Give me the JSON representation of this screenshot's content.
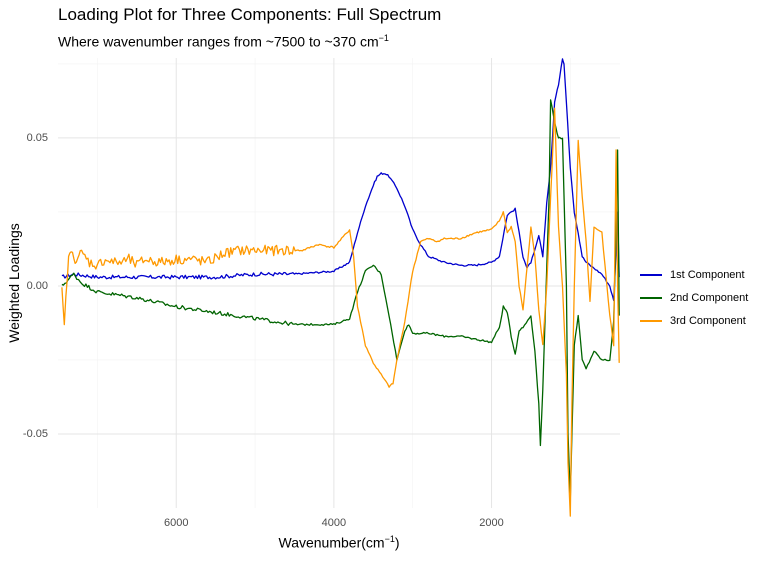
{
  "chart_data": {
    "type": "line",
    "title": "Loading Plot for Three Components: Full Spectrum",
    "subtitle": "Where wavenumber ranges from ~7500 to ~370 cm",
    "subtitle_sup": "−1",
    "xlabel": "Wavenumber(cm",
    "xlabel_sup": "−1",
    "xlabel_end": ")",
    "ylabel": "Weighted Loadings",
    "x_reversed": true,
    "xlim": [
      7500,
      370
    ],
    "ylim": [
      -0.075,
      0.077
    ],
    "x_ticks": [
      6000,
      4000,
      2000
    ],
    "x_tick_labels": [
      "6000",
      "4000",
      "2000"
    ],
    "y_ticks": [
      0.05,
      0.0,
      -0.05
    ],
    "y_tick_labels": [
      "0.05",
      "0.00",
      "-0.05"
    ],
    "grid": true,
    "legend_position": "right",
    "series": [
      {
        "name": "1st Component",
        "color": "#0000CD",
        "x": [
          7450,
          7300,
          7000,
          6500,
          6000,
          5500,
          5000,
          4500,
          4000,
          3800,
          3700,
          3600,
          3500,
          3450,
          3400,
          3350,
          3300,
          3200,
          3100,
          3000,
          2900,
          2800,
          2600,
          2400,
          2200,
          2000,
          1900,
          1800,
          1700,
          1650,
          1600,
          1550,
          1500,
          1450,
          1400,
          1350,
          1300,
          1250,
          1200,
          1150,
          1100,
          1080,
          1050,
          1000,
          950,
          900,
          850,
          800,
          700,
          600,
          500,
          450,
          420,
          400,
          380
        ],
        "y": [
          0.003,
          0.004,
          0.003,
          0.003,
          0.003,
          0.003,
          0.004,
          0.004,
          0.005,
          0.008,
          0.018,
          0.027,
          0.034,
          0.037,
          0.038,
          0.038,
          0.037,
          0.033,
          0.027,
          0.019,
          0.014,
          0.01,
          0.008,
          0.007,
          0.007,
          0.008,
          0.01,
          0.024,
          0.026,
          0.018,
          0.01,
          0.006,
          0.008,
          0.012,
          0.017,
          0.01,
          0.028,
          0.04,
          0.062,
          0.068,
          0.077,
          0.075,
          0.062,
          0.04,
          0.025,
          0.018,
          0.01,
          0.008,
          0.006,
          0.004,
          0.0,
          -0.005,
          0.012,
          0.025,
          0.003
        ]
      },
      {
        "name": "2nd Component",
        "color": "#006400",
        "x": [
          7450,
          7300,
          7200,
          7000,
          6500,
          6000,
          5500,
          5000,
          4500,
          4000,
          3800,
          3700,
          3600,
          3500,
          3400,
          3300,
          3200,
          3100,
          3050,
          3000,
          2900,
          2800,
          2600,
          2400,
          2200,
          2000,
          1900,
          1850,
          1800,
          1750,
          1700,
          1650,
          1600,
          1500,
          1450,
          1400,
          1380,
          1350,
          1300,
          1270,
          1250,
          1200,
          1150,
          1100,
          1050,
          1030,
          1000,
          980,
          950,
          900,
          850,
          800,
          700,
          600,
          500,
          450,
          420,
          400,
          380
        ],
        "y": [
          0.0,
          0.004,
          0.001,
          -0.002,
          -0.004,
          -0.007,
          -0.009,
          -0.011,
          -0.013,
          -0.013,
          -0.011,
          -0.002,
          0.005,
          0.007,
          0.004,
          -0.01,
          -0.025,
          -0.015,
          -0.013,
          -0.016,
          -0.016,
          -0.016,
          -0.017,
          -0.017,
          -0.018,
          -0.019,
          -0.014,
          -0.007,
          -0.009,
          -0.017,
          -0.023,
          -0.015,
          -0.014,
          -0.01,
          -0.022,
          -0.04,
          -0.054,
          -0.035,
          0.006,
          0.03,
          0.063,
          0.055,
          0.05,
          0.05,
          0.0,
          -0.05,
          -0.072,
          -0.05,
          -0.02,
          -0.01,
          -0.025,
          -0.028,
          -0.022,
          -0.025,
          -0.025,
          -0.012,
          0.02,
          0.046,
          -0.01
        ]
      },
      {
        "name": "3rd Component",
        "color": "#FF9900",
        "x": [
          7450,
          7420,
          7380,
          7350,
          7300,
          7250,
          7200,
          7100,
          7000,
          6900,
          6800,
          6700,
          6600,
          6500,
          6400,
          6200,
          6000,
          5800,
          5600,
          5400,
          5200,
          5000,
          4800,
          4600,
          4400,
          4200,
          4000,
          3900,
          3800,
          3750,
          3700,
          3600,
          3500,
          3400,
          3300,
          3250,
          3200,
          3100,
          3000,
          2900,
          2800,
          2700,
          2600,
          2400,
          2200,
          2000,
          1900,
          1850,
          1800,
          1750,
          1700,
          1650,
          1600,
          1500,
          1450,
          1400,
          1350,
          1300,
          1250,
          1200,
          1150,
          1100,
          1050,
          1030,
          1000,
          980,
          950,
          900,
          850,
          800,
          750,
          700,
          600,
          500,
          450,
          420,
          400,
          380
        ],
        "y": [
          -0.002,
          -0.014,
          0.005,
          0.012,
          0.009,
          0.01,
          0.011,
          0.008,
          0.007,
          0.009,
          0.008,
          0.008,
          0.009,
          0.007,
          0.009,
          0.008,
          0.009,
          0.009,
          0.008,
          0.011,
          0.012,
          0.012,
          0.012,
          0.012,
          0.012,
          0.014,
          0.013,
          0.016,
          0.019,
          0.01,
          -0.007,
          -0.02,
          -0.026,
          -0.03,
          -0.034,
          -0.033,
          -0.025,
          -0.012,
          0.005,
          0.015,
          0.016,
          0.015,
          0.016,
          0.016,
          0.018,
          0.019,
          0.022,
          0.025,
          0.018,
          0.02,
          0.015,
          0.0,
          -0.008,
          0.02,
          0.01,
          -0.008,
          -0.02,
          0.0,
          0.03,
          0.06,
          0.02,
          0.0,
          -0.03,
          -0.06,
          -0.078,
          -0.04,
          0.0,
          0.049,
          0.03,
          0.015,
          -0.005,
          0.02,
          0.018,
          -0.01,
          -0.02,
          0.046,
          0.0,
          -0.026
        ]
      }
    ]
  }
}
